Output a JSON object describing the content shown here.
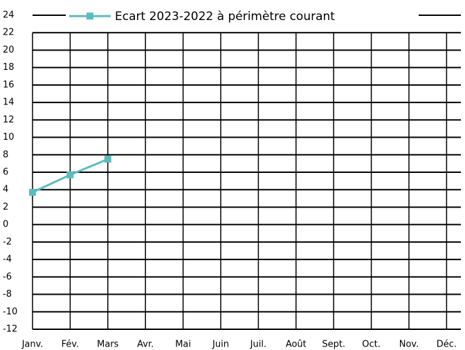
{
  "chart_data": {
    "type": "line",
    "categories": [
      "Janv.",
      "Fév.",
      "Mars",
      "Avr.",
      "Mai",
      "Juin",
      "Juil.",
      "Août",
      "Sept.",
      "Oct.",
      "Nov.",
      "Déc."
    ],
    "series": [
      {
        "name": "Ecart 2023-2022 à périmètre courant",
        "color": "#5bbcc0",
        "values": [
          3.7,
          5.7,
          7.5,
          null,
          null,
          null,
          null,
          null,
          null,
          null,
          null,
          null
        ]
      }
    ],
    "ylim": [
      -12,
      24
    ],
    "yticks": [
      -12,
      -10,
      -8,
      -6,
      -4,
      -2,
      0,
      2,
      4,
      6,
      8,
      10,
      12,
      14,
      16,
      18,
      20,
      22,
      24
    ],
    "grid": true,
    "legend": "top"
  }
}
